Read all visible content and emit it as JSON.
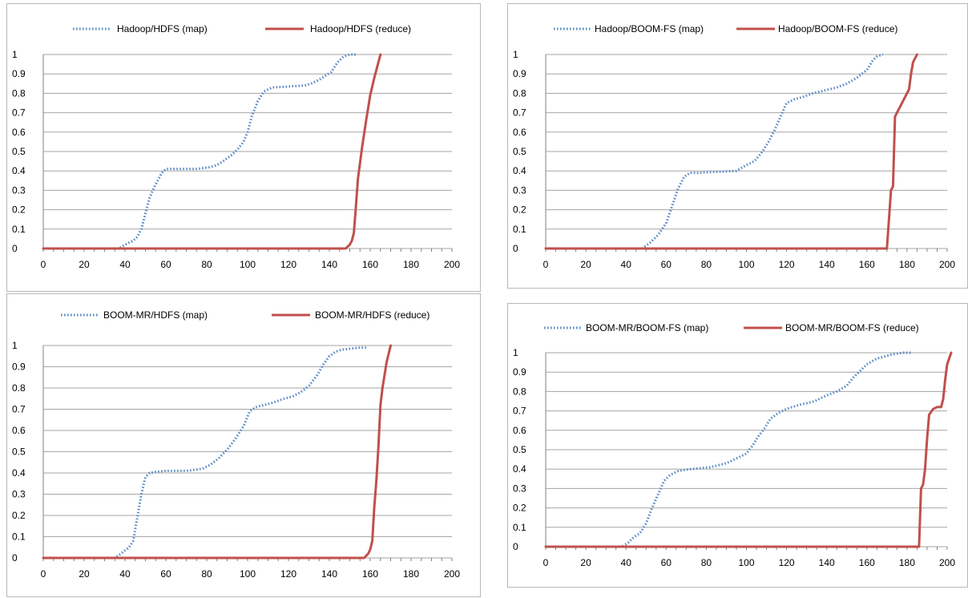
{
  "colors": {
    "map": "#5a8ac6",
    "reduce": "#c0504d",
    "grid": "#a6a6a6",
    "axis": "#808080"
  },
  "chart_data": [
    {
      "type": "line",
      "title": "",
      "xlabel": "",
      "ylabel": "",
      "xlim": [
        0,
        200
      ],
      "ylim": [
        0,
        1
      ],
      "x_ticks": [
        0,
        20,
        40,
        60,
        80,
        100,
        120,
        140,
        160,
        180,
        200
      ],
      "y_ticks": [
        0,
        0.1,
        0.2,
        0.3,
        0.4,
        0.5,
        0.6,
        0.7,
        0.8,
        0.9,
        1
      ],
      "x_tick_labels": [
        "0",
        "20",
        "40",
        "60",
        "80",
        "100",
        "120",
        "140",
        "160",
        "180",
        "200"
      ],
      "y_tick_labels": [
        "0",
        "0.1",
        "0.2",
        "0.3",
        "0.4",
        "0.5",
        "0.6",
        "0.7",
        "0.8",
        "0.9",
        "1"
      ],
      "grid": true,
      "legend_position": "top",
      "series": [
        {
          "name": "Hadoop/HDFS (map)",
          "style": "dotted",
          "x": [
            0,
            37,
            40,
            44,
            46,
            48,
            50,
            52,
            54,
            56,
            58,
            60,
            65,
            75,
            82,
            85,
            88,
            92,
            95,
            98,
            100,
            102,
            105,
            108,
            112,
            120,
            128,
            131,
            135,
            138,
            141,
            144,
            147,
            150,
            153
          ],
          "y": [
            0,
            0,
            0.02,
            0.04,
            0.06,
            0.1,
            0.18,
            0.26,
            0.31,
            0.35,
            0.39,
            0.41,
            0.41,
            0.41,
            0.42,
            0.43,
            0.45,
            0.48,
            0.51,
            0.55,
            0.6,
            0.68,
            0.76,
            0.81,
            0.83,
            0.835,
            0.84,
            0.85,
            0.87,
            0.89,
            0.91,
            0.96,
            0.99,
            1.0,
            1.0
          ]
        },
        {
          "name": "Hadoop/HDFS (reduce)",
          "style": "solid",
          "x": [
            0,
            148,
            150,
            151,
            152,
            153,
            154,
            156,
            158,
            160,
            162,
            164,
            165
          ],
          "y": [
            0,
            0,
            0.02,
            0.04,
            0.08,
            0.22,
            0.36,
            0.52,
            0.66,
            0.79,
            0.88,
            0.96,
            1.0
          ]
        }
      ]
    },
    {
      "type": "line",
      "title": "",
      "xlabel": "",
      "ylabel": "",
      "xlim": [
        0,
        200
      ],
      "ylim": [
        0,
        1
      ],
      "x_ticks": [
        0,
        20,
        40,
        60,
        80,
        100,
        120,
        140,
        160,
        180,
        200
      ],
      "y_ticks": [
        0,
        0.1,
        0.2,
        0.3,
        0.4,
        0.5,
        0.6,
        0.7,
        0.8,
        0.9,
        1
      ],
      "x_tick_labels": [
        "0",
        "20",
        "40",
        "60",
        "80",
        "100",
        "120",
        "140",
        "160",
        "180",
        "200"
      ],
      "y_tick_labels": [
        "0",
        "0.1",
        "0.2",
        "0.3",
        "0.4",
        "0.5",
        "0.6",
        "0.7",
        "0.8",
        "0.9",
        "1"
      ],
      "grid": true,
      "legend_position": "top",
      "series": [
        {
          "name": "Hadoop/BOOM-FS (map)",
          "style": "dotted",
          "x": [
            0,
            48,
            52,
            56,
            60,
            63,
            66,
            69,
            72,
            76,
            85,
            95,
            100,
            104,
            108,
            111,
            114,
            117,
            120,
            124,
            128,
            133,
            137,
            141,
            145,
            150,
            155,
            160,
            163,
            165,
            168
          ],
          "y": [
            0,
            0,
            0.03,
            0.07,
            0.13,
            0.22,
            0.31,
            0.37,
            0.39,
            0.39,
            0.395,
            0.4,
            0.43,
            0.45,
            0.5,
            0.55,
            0.61,
            0.68,
            0.75,
            0.77,
            0.78,
            0.8,
            0.81,
            0.82,
            0.83,
            0.85,
            0.88,
            0.92,
            0.97,
            0.99,
            1.0
          ]
        },
        {
          "name": "Hadoop/BOOM-FS (reduce)",
          "style": "solid",
          "x": [
            0,
            170,
            172,
            173,
            174,
            175,
            177,
            179,
            181,
            182,
            183,
            185
          ],
          "y": [
            0,
            0,
            0.3,
            0.32,
            0.68,
            0.7,
            0.74,
            0.78,
            0.82,
            0.9,
            0.96,
            1.0
          ]
        }
      ]
    },
    {
      "type": "line",
      "title": "",
      "xlabel": "",
      "ylabel": "",
      "xlim": [
        0,
        200
      ],
      "ylim": [
        0,
        1
      ],
      "x_ticks": [
        0,
        20,
        40,
        60,
        80,
        100,
        120,
        140,
        160,
        180,
        200
      ],
      "y_ticks": [
        0,
        0.1,
        0.2,
        0.3,
        0.4,
        0.5,
        0.6,
        0.7,
        0.8,
        0.9,
        1
      ],
      "x_tick_labels": [
        "0",
        "20",
        "40",
        "60",
        "80",
        "100",
        "120",
        "140",
        "160",
        "180",
        "200"
      ],
      "y_tick_labels": [
        "0",
        "0.1",
        "0.2",
        "0.3",
        "0.4",
        "0.5",
        "0.6",
        "0.7",
        "0.8",
        "0.9",
        "1"
      ],
      "grid": true,
      "legend_position": "top",
      "series": [
        {
          "name": "BOOM-MR/HDFS (map)",
          "style": "dotted",
          "x": [
            0,
            35,
            38,
            42,
            44,
            46,
            48,
            50,
            52,
            55,
            60,
            70,
            78,
            82,
            86,
            90,
            94,
            98,
            101,
            104,
            108,
            112,
            118,
            122,
            126,
            130,
            134,
            137,
            140,
            143,
            146,
            150,
            155,
            158
          ],
          "y": [
            0,
            0,
            0.02,
            0.05,
            0.08,
            0.19,
            0.3,
            0.38,
            0.4,
            0.405,
            0.41,
            0.41,
            0.42,
            0.44,
            0.47,
            0.51,
            0.56,
            0.62,
            0.69,
            0.71,
            0.72,
            0.73,
            0.75,
            0.76,
            0.78,
            0.81,
            0.86,
            0.91,
            0.95,
            0.97,
            0.98,
            0.985,
            0.99,
            0.99
          ]
        },
        {
          "name": "BOOM-MR/HDFS (reduce)",
          "style": "solid",
          "x": [
            0,
            157,
            159,
            160,
            161,
            162,
            163,
            164,
            165,
            166,
            168,
            170
          ],
          "y": [
            0,
            0,
            0.02,
            0.04,
            0.08,
            0.24,
            0.36,
            0.52,
            0.72,
            0.8,
            0.92,
            1.0
          ]
        }
      ]
    },
    {
      "type": "line",
      "title": "",
      "xlabel": "",
      "ylabel": "",
      "xlim": [
        0,
        200
      ],
      "ylim": [
        0,
        1
      ],
      "x_ticks": [
        0,
        20,
        40,
        60,
        80,
        100,
        120,
        140,
        160,
        180,
        200
      ],
      "y_ticks": [
        0,
        0.1,
        0.2,
        0.3,
        0.4,
        0.5,
        0.6,
        0.7,
        0.8,
        0.9,
        1
      ],
      "x_tick_labels": [
        "0",
        "20",
        "40",
        "60",
        "80",
        "100",
        "120",
        "140",
        "160",
        "180",
        "200"
      ],
      "y_tick_labels": [
        "0",
        "0.1",
        "0.2",
        "0.3",
        "0.4",
        "0.5",
        "0.6",
        "0.7",
        "0.8",
        "0.9",
        "1"
      ],
      "grid": true,
      "legend_position": "top",
      "series": [
        {
          "name": "BOOM-MR/BOOM-FS (map)",
          "style": "dotted",
          "x": [
            0,
            38,
            41,
            44,
            47,
            50,
            53,
            56,
            59,
            62,
            66,
            72,
            82,
            90,
            96,
            100,
            103,
            106,
            109,
            112,
            116,
            120,
            126,
            134,
            140,
            145,
            150,
            153,
            157,
            160,
            165,
            172,
            178,
            182
          ],
          "y": [
            0,
            0,
            0.02,
            0.05,
            0.07,
            0.12,
            0.2,
            0.27,
            0.34,
            0.37,
            0.39,
            0.4,
            0.41,
            0.43,
            0.46,
            0.48,
            0.52,
            0.57,
            0.61,
            0.66,
            0.69,
            0.71,
            0.73,
            0.75,
            0.78,
            0.8,
            0.83,
            0.87,
            0.91,
            0.94,
            0.97,
            0.99,
            1.0,
            1.0
          ]
        },
        {
          "name": "BOOM-MR/BOOM-FS (reduce)",
          "style": "solid",
          "x": [
            0,
            186,
            187,
            188,
            189,
            190,
            191,
            193,
            195,
            197,
            198,
            199,
            200,
            202
          ],
          "y": [
            0,
            0,
            0.3,
            0.32,
            0.4,
            0.56,
            0.68,
            0.71,
            0.72,
            0.72,
            0.76,
            0.86,
            0.94,
            1.0
          ]
        }
      ]
    }
  ]
}
